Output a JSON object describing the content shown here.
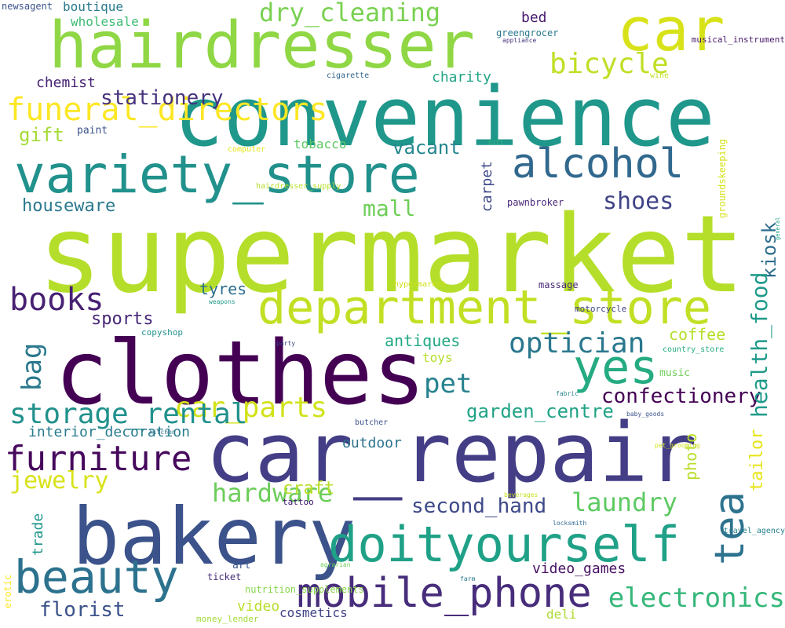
{
  "words": [
    {
      "text": "supermarket",
      "color": "#b5de2b"
    },
    {
      "text": "convenience",
      "color": "#1f978b"
    },
    {
      "text": "car_repair",
      "color": "#433e85"
    },
    {
      "text": "clothes",
      "color": "#440154"
    },
    {
      "text": "bakery",
      "color": "#3b528b"
    },
    {
      "text": "hairdresser",
      "color": "#8fd744"
    },
    {
      "text": "car",
      "color": "#d8e219"
    },
    {
      "text": "variety_store",
      "color": "#21918c"
    },
    {
      "text": "department_store",
      "color": "#c2df23"
    },
    {
      "text": "doityourself",
      "color": "#1fa187"
    },
    {
      "text": "mobile_phone",
      "color": "#472d7b"
    },
    {
      "text": "beauty",
      "color": "#2c728e"
    },
    {
      "text": "yes",
      "color": "#25ab82"
    },
    {
      "text": "alcohol",
      "color": "#31688e"
    },
    {
      "text": "furniture",
      "color": "#46085c"
    },
    {
      "text": "car_parts",
      "color": "#d2e21b"
    },
    {
      "text": "funeral_directors",
      "color": "#fde725"
    },
    {
      "text": "books",
      "color": "#482173"
    },
    {
      "text": "bicycle",
      "color": "#c0df25"
    },
    {
      "text": "dry_cleaning",
      "color": "#7ad151"
    },
    {
      "text": "storage_rental",
      "color": "#21918c"
    },
    {
      "text": "jewelry",
      "color": "#d8e219"
    },
    {
      "text": "electronics",
      "color": "#35b779"
    },
    {
      "text": "optician",
      "color": "#2a788e"
    },
    {
      "text": "pet",
      "color": "#26828e"
    },
    {
      "text": "laundry",
      "color": "#5ec962"
    },
    {
      "text": "hardware",
      "color": "#6ccd5a"
    },
    {
      "text": "gift",
      "color": "#a5db36"
    },
    {
      "text": "mall",
      "color": "#6ece58"
    },
    {
      "text": "shoes",
      "color": "#414487"
    },
    {
      "text": "florist",
      "color": "#3b528b"
    },
    {
      "text": "sports",
      "color": "#482878"
    },
    {
      "text": "houseware",
      "color": "#2a788e"
    },
    {
      "text": "second_hand",
      "color": "#3e4989"
    },
    {
      "text": "confectionery",
      "color": "#440154"
    },
    {
      "text": "garden_centre",
      "color": "#20a386"
    },
    {
      "text": "stationery",
      "color": "#46327e"
    },
    {
      "text": "vacant",
      "color": "#24868e"
    },
    {
      "text": "antiques",
      "color": "#22a884"
    },
    {
      "text": "craft",
      "color": "#b8de29"
    },
    {
      "text": "coffee",
      "color": "#b5de2b"
    },
    {
      "text": "video_games",
      "color": "#471164"
    },
    {
      "text": "tyres",
      "color": "#2e6f8e"
    },
    {
      "text": "charity",
      "color": "#20a486"
    },
    {
      "text": "chemist",
      "color": "#482475"
    },
    {
      "text": "bed",
      "color": "#481c6e"
    },
    {
      "text": "tobacco",
      "color": "#5cc863"
    },
    {
      "text": "video",
      "color": "#b8de29"
    },
    {
      "text": "outdoor",
      "color": "#2c728e"
    },
    {
      "text": "interior_decoration",
      "color": "#287c8e"
    },
    {
      "text": "toys",
      "color": "#b5de2b"
    },
    {
      "text": "cosmetics",
      "color": "#414487"
    },
    {
      "text": "deli",
      "color": "#addc30"
    },
    {
      "text": "boutique",
      "color": "#29798e"
    },
    {
      "text": "wholesale",
      "color": "#3dbc74"
    },
    {
      "text": "art",
      "color": "#39558c"
    },
    {
      "text": "music",
      "color": "#6ece58"
    },
    {
      "text": "paint",
      "color": "#3b528b"
    },
    {
      "text": "pawnbroker",
      "color": "#482878"
    },
    {
      "text": "greengrocer",
      "color": "#2a788e"
    },
    {
      "text": "ticket",
      "color": "#472d7b"
    },
    {
      "text": "nutrition_supplements",
      "color": "#86d549"
    },
    {
      "text": "tattoo",
      "color": "#3b0f70"
    },
    {
      "text": "newsagent",
      "color": "#3b528b"
    },
    {
      "text": "copyshop",
      "color": "#21918c"
    },
    {
      "text": "money_lender",
      "color": "#a2da37"
    },
    {
      "text": "massage",
      "color": "#482878"
    },
    {
      "text": "musical_instrument",
      "color": "#481a6c"
    },
    {
      "text": "country_store",
      "color": "#26ad81"
    },
    {
      "text": "motorcycle",
      "color": "#404688"
    },
    {
      "text": "hypermarket",
      "color": "#d0e11c"
    },
    {
      "text": "computer",
      "color": "#e5e419"
    },
    {
      "text": "hairdresser_supply",
      "color": "#b8de29"
    },
    {
      "text": "butcher",
      "color": "#3b528b"
    },
    {
      "text": "travel_agency",
      "color": "#27808e"
    },
    {
      "text": "cigarette",
      "color": "#33638d"
    },
    {
      "text": "wine",
      "color": "#c2df23"
    },
    {
      "text": "appliance",
      "color": "#46327e"
    },
    {
      "text": "weapons",
      "color": "#1f9a8a"
    },
    {
      "text": "party",
      "color": "#3f4788"
    },
    {
      "text": "fabric",
      "color": "#25838e"
    },
    {
      "text": "baby_goods",
      "color": "#3b528b"
    },
    {
      "text": "hifi",
      "color": "#35b779"
    },
    {
      "text": "pet_grooming",
      "color": "#d2e21b"
    },
    {
      "text": "kitchen",
      "color": "#2c728e"
    },
    {
      "text": "farm",
      "color": "#2a788e"
    },
    {
      "text": "agrarian",
      "color": "#6ece58"
    },
    {
      "text": "locksmith",
      "color": "#31688e"
    },
    {
      "text": "beverages",
      "color": "#c8e020"
    },
    {
      "text": "kiosk",
      "color": "#2e6e8e"
    },
    {
      "text": "tea",
      "color": "#2c728e"
    },
    {
      "text": "health_food",
      "color": "#1f9a8a"
    },
    {
      "text": "tailor",
      "color": "#e7e419"
    },
    {
      "text": "photo",
      "color": "#b8de29"
    },
    {
      "text": "bag",
      "color": "#2a788e"
    },
    {
      "text": "trade",
      "color": "#1f968b"
    },
    {
      "text": "carpet",
      "color": "#3e4989"
    },
    {
      "text": "erotic",
      "color": "#fde725"
    },
    {
      "text": "groundskeeping",
      "color": "#d5e21a"
    },
    {
      "text": "general",
      "color": "#1fa187"
    }
  ]
}
